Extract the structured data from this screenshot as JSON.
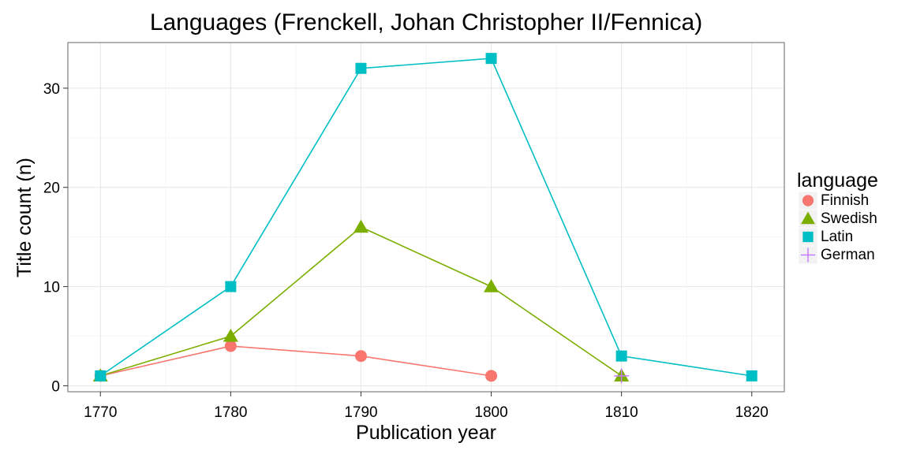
{
  "chart_data": {
    "type": "line",
    "title": "Languages (Frenckell, Johan Christopher II/Fennica)",
    "xlabel": "Publication year",
    "ylabel": "Title count (n)",
    "xlim": [
      1767.5,
      1822.5
    ],
    "ylim": [
      -0.6,
      34.6
    ],
    "x_ticks": [
      1770,
      1780,
      1790,
      1800,
      1810,
      1820
    ],
    "y_ticks": [
      0,
      10,
      20,
      30
    ],
    "grid": true,
    "legend": {
      "title": "language",
      "position": "right"
    },
    "series": [
      {
        "name": "Finnish",
        "color": "#F8766D",
        "marker": "circle",
        "x": [
          1770,
          1780,
          1790,
          1800
        ],
        "y": [
          1,
          4,
          3,
          1
        ]
      },
      {
        "name": "Swedish",
        "color": "#7CAE00",
        "marker": "triangle",
        "x": [
          1770,
          1780,
          1790,
          1800,
          1810
        ],
        "y": [
          1,
          5,
          16,
          10,
          1
        ]
      },
      {
        "name": "Latin",
        "color": "#00BFC4",
        "marker": "square",
        "x": [
          1770,
          1780,
          1790,
          1800,
          1810,
          1820
        ],
        "y": [
          1,
          10,
          32,
          33,
          3,
          1
        ]
      },
      {
        "name": "German",
        "color": "#C77CFF",
        "marker": "plus",
        "x": [
          1810
        ],
        "y": [
          1
        ]
      }
    ]
  }
}
